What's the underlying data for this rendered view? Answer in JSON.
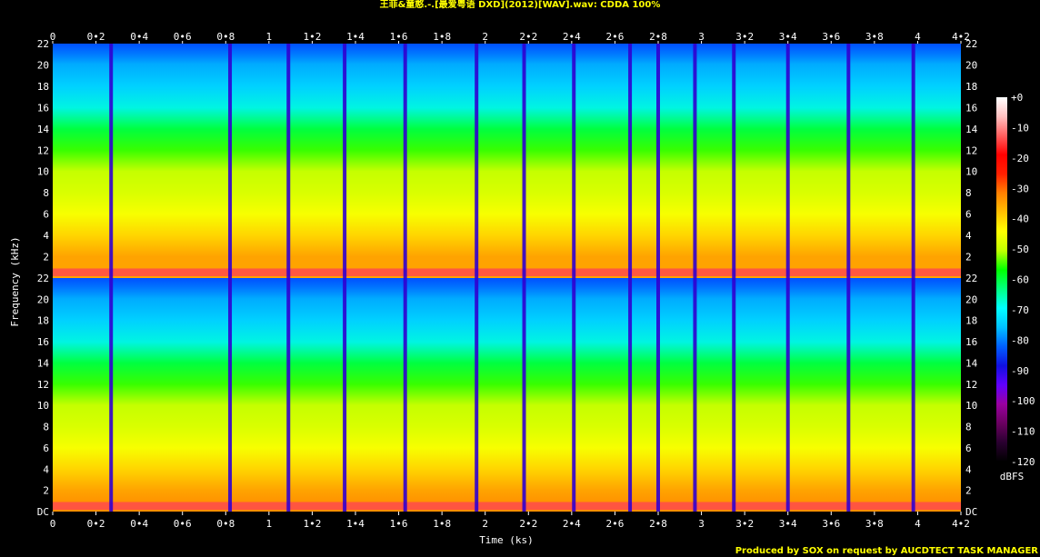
{
  "title": "王菲&童憨.-.[最爱粤语 DXD](2012)[WAV].wav: CDDA 100%",
  "footer": "Produced by SOX on request by AUCDTECT TASK MANAGER",
  "chart_data": {
    "type": "heatmap",
    "xlabel": "Time (ks)",
    "ylabel": "Frequency (kHz)",
    "colorbar_label": "dBFS",
    "xlim": [
      0,
      4.2
    ],
    "ylim": [
      0,
      22
    ],
    "x_ticks": [
      {
        "v": 0,
        "label": "0"
      },
      {
        "v": 0.2,
        "label": "0•2"
      },
      {
        "v": 0.4,
        "label": "0•4"
      },
      {
        "v": 0.6,
        "label": "0•6"
      },
      {
        "v": 0.8,
        "label": "0•8"
      },
      {
        "v": 1,
        "label": "1"
      },
      {
        "v": 1.2,
        "label": "1•2"
      },
      {
        "v": 1.4,
        "label": "1•4"
      },
      {
        "v": 1.6,
        "label": "1•6"
      },
      {
        "v": 1.8,
        "label": "1•8"
      },
      {
        "v": 2,
        "label": "2"
      },
      {
        "v": 2.2,
        "label": "2•2"
      },
      {
        "v": 2.4,
        "label": "2•4"
      },
      {
        "v": 2.6,
        "label": "2•6"
      },
      {
        "v": 2.8,
        "label": "2•8"
      },
      {
        "v": 3,
        "label": "3"
      },
      {
        "v": 3.2,
        "label": "3•2"
      },
      {
        "v": 3.4,
        "label": "3•4"
      },
      {
        "v": 3.6,
        "label": "3•6"
      },
      {
        "v": 3.8,
        "label": "3•8"
      },
      {
        "v": 4,
        "label": "4"
      },
      {
        "v": 4.2,
        "label": "4•2"
      }
    ],
    "y_ticks": [
      {
        "v": 0,
        "label": "DC"
      },
      {
        "v": 2,
        "label": "2"
      },
      {
        "v": 4,
        "label": "4"
      },
      {
        "v": 6,
        "label": "6"
      },
      {
        "v": 8,
        "label": "8"
      },
      {
        "v": 10,
        "label": "10"
      },
      {
        "v": 12,
        "label": "12"
      },
      {
        "v": 14,
        "label": "14"
      },
      {
        "v": 16,
        "label": "16"
      },
      {
        "v": 18,
        "label": "18"
      },
      {
        "v": 20,
        "label": "20"
      },
      {
        "v": 22,
        "label": "22"
      }
    ],
    "colorbar_ticks": [
      {
        "v": 0,
        "label": "+0"
      },
      {
        "v": -10,
        "label": "-10"
      },
      {
        "v": -20,
        "label": "-20"
      },
      {
        "v": -30,
        "label": "-30"
      },
      {
        "v": -40,
        "label": "-40"
      },
      {
        "v": -50,
        "label": "-50"
      },
      {
        "v": -60,
        "label": "-60"
      },
      {
        "v": -70,
        "label": "-70"
      },
      {
        "v": -80,
        "label": "-80"
      },
      {
        "v": -90,
        "label": "-90"
      },
      {
        "v": -100,
        "label": "-100"
      },
      {
        "v": -110,
        "label": "-110"
      },
      {
        "v": -120,
        "label": "-120"
      }
    ],
    "colorbar_range": [
      -120,
      0
    ],
    "colormap": [
      "#000000",
      "#2a0030",
      "#6a0060",
      "#9a00a0",
      "#6000ff",
      "#1010e0",
      "#0060ff",
      "#00c0ff",
      "#00ffff",
      "#00ff80",
      "#00ff00",
      "#c0ff00",
      "#ffff00",
      "#ffc000",
      "#ff8000",
      "#ff2000",
      "#ff0000",
      "#ff6060",
      "#ffc0c0",
      "#ffffff"
    ],
    "track_boundaries_ks": [
      0.27,
      0.82,
      1.09,
      1.35,
      1.63,
      1.96,
      2.18,
      2.41,
      2.67,
      2.8,
      2.97,
      3.15,
      3.4,
      3.68,
      3.98,
      4.2
    ],
    "channels": [
      {
        "name": "",
        "spectrum_db": [
          -35,
          -35,
          -40,
          -45,
          -48,
          -50,
          -55,
          -60,
          -68,
          -72,
          -75,
          -78
        ]
      },
      {
        "name": "",
        "spectrum_db": [
          -33,
          -35,
          -40,
          -45,
          -48,
          -50,
          -55,
          -60,
          -68,
          -72,
          -75,
          -78
        ]
      }
    ],
    "spectrum_freqs_khz": [
      0.5,
      2,
      4,
      6,
      8,
      10,
      12,
      14,
      16,
      18,
      20,
      22
    ],
    "grid": false,
    "legend": "none"
  }
}
